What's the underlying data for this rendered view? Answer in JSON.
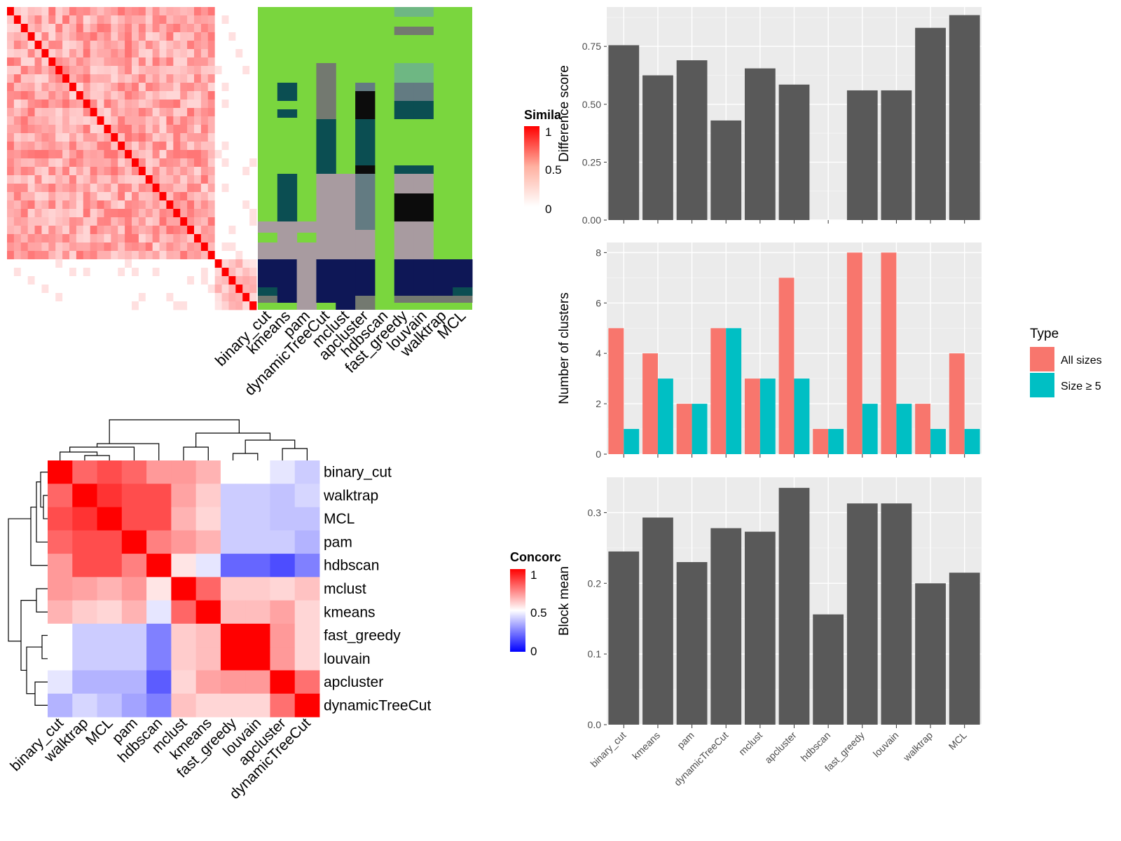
{
  "similarity_legend": {
    "title": "Simila",
    "ticks": [
      "1",
      "0.5",
      "0"
    ]
  },
  "concordance_legend": {
    "title": "Concorc",
    "ticks": [
      "1",
      "0.5",
      "0"
    ]
  },
  "type_legend": {
    "title": "Type",
    "items": [
      {
        "label": "All sizes",
        "color": "#F8766D"
      },
      {
        "label": "Size ≥ 5",
        "color": "#00BFC4"
      }
    ]
  },
  "colors": {
    "bar_gray": "#595959",
    "panel_bg": "#EBEBEB",
    "grid": "#FFFFFF",
    "sim_high": "#FF0000",
    "class_green": "#7AD63E",
    "class_navy": "#0E1756",
    "class_teal": "#0B4E52",
    "class_mauve": "#A89BA0",
    "class_black": "#0C0C0C",
    "class_slate": "#637B82",
    "class_gray": "#737970",
    "class_mint": "#6EB783",
    "conc_high": "#FF0000",
    "conc_mid": "#FFFFFF",
    "conc_low": "#0000FF"
  },
  "chart_data": [
    {
      "type": "heatmap",
      "title": "",
      "legend_title": "Similarity",
      "rows": 36,
      "cols": 36,
      "scale": [
        0,
        1
      ],
      "clusters": [
        [
          0,
          30
        ],
        [
          30,
          36
        ]
      ]
    },
    {
      "type": "heatmap",
      "title": "",
      "methods": [
        "binary_cut",
        "kmeans",
        "pam",
        "dynamicTreeCut",
        "mclust",
        "apcluster",
        "hdbscan",
        "fast_greedy",
        "louvain",
        "walktrap",
        "MCL"
      ]
    },
    {
      "type": "heatmap",
      "title": "",
      "legend_title": "Concordance",
      "row_labels": [
        "binary_cut",
        "walktrap",
        "MCL",
        "pam",
        "hdbscan",
        "mclust",
        "kmeans",
        "fast_greedy",
        "louvain",
        "apcluster",
        "dynamicTreeCut"
      ],
      "col_labels": [
        "binary_cut",
        "walktrap",
        "MCL",
        "pam",
        "hdbscan",
        "mclust",
        "kmeans",
        "fast_greedy",
        "louvain",
        "apcluster",
        "dynamicTreeCut"
      ],
      "values": [
        [
          1.0,
          0.8,
          0.85,
          0.8,
          0.7,
          0.7,
          0.65,
          0.5,
          0.5,
          0.45,
          0.4
        ],
        [
          0.8,
          1.0,
          0.9,
          0.85,
          0.85,
          0.68,
          0.6,
          0.4,
          0.4,
          0.38,
          0.42
        ],
        [
          0.85,
          0.9,
          1.0,
          0.85,
          0.85,
          0.65,
          0.58,
          0.4,
          0.4,
          0.38,
          0.38
        ],
        [
          0.8,
          0.85,
          0.85,
          1.0,
          0.75,
          0.7,
          0.65,
          0.4,
          0.4,
          0.4,
          0.35
        ],
        [
          0.7,
          0.85,
          0.85,
          0.75,
          1.0,
          0.55,
          0.45,
          0.2,
          0.2,
          0.15,
          0.25
        ],
        [
          0.7,
          0.68,
          0.65,
          0.7,
          0.55,
          1.0,
          0.8,
          0.6,
          0.6,
          0.58,
          0.62
        ],
        [
          0.65,
          0.6,
          0.58,
          0.65,
          0.45,
          0.8,
          1.0,
          0.63,
          0.63,
          0.68,
          0.58
        ],
        [
          0.5,
          0.4,
          0.4,
          0.4,
          0.25,
          0.6,
          0.63,
          1.0,
          1.0,
          0.7,
          0.58
        ],
        [
          0.5,
          0.4,
          0.4,
          0.4,
          0.25,
          0.6,
          0.63,
          1.0,
          1.0,
          0.7,
          0.58
        ],
        [
          0.45,
          0.35,
          0.35,
          0.35,
          0.18,
          0.58,
          0.68,
          0.7,
          0.7,
          1.0,
          0.78
        ],
        [
          0.35,
          0.42,
          0.38,
          0.32,
          0.25,
          0.62,
          0.58,
          0.58,
          0.58,
          0.78,
          1.0
        ]
      ]
    },
    {
      "type": "bar",
      "title": "",
      "xlabel": "",
      "ylabel": "Difference score",
      "categories": [
        "binary_cut",
        "kmeans",
        "pam",
        "dynamicTreeCut",
        "mclust",
        "apcluster",
        "hdbscan",
        "fast_greedy",
        "louvain",
        "walktrap",
        "MCL"
      ],
      "values": [
        0.755,
        0.625,
        0.69,
        0.43,
        0.655,
        0.585,
        null,
        0.56,
        0.56,
        0.83,
        0.885
      ],
      "ylim": [
        0,
        0.92
      ],
      "yticks": [
        "0.00",
        "0.25",
        "0.50",
        "0.75"
      ],
      "ytick_values": [
        0,
        0.25,
        0.5,
        0.75
      ],
      "grid": true
    },
    {
      "type": "bar",
      "title": "",
      "xlabel": "",
      "ylabel": "Number of clusters",
      "categories": [
        "binary_cut",
        "kmeans",
        "pam",
        "dynamicTreeCut",
        "mclust",
        "apcluster",
        "hdbscan",
        "fast_greedy",
        "louvain",
        "walktrap",
        "MCL"
      ],
      "series": [
        {
          "name": "All sizes",
          "values": [
            5,
            4,
            2,
            5,
            3,
            7,
            1,
            8,
            8,
            2,
            4
          ]
        },
        {
          "name": "Size ≥ 5",
          "values": [
            1,
            3,
            2,
            5,
            3,
            3,
            1,
            2,
            2,
            1,
            1
          ]
        }
      ],
      "ylim": [
        0,
        8.4
      ],
      "yticks": [
        "0",
        "2",
        "4",
        "6",
        "8"
      ],
      "ytick_values": [
        0,
        2,
        4,
        6,
        8
      ],
      "legend_position": "right",
      "grid": true
    },
    {
      "type": "bar",
      "title": "",
      "xlabel": "",
      "ylabel": "Block mean",
      "categories": [
        "binary_cut",
        "kmeans",
        "pam",
        "dynamicTreeCut",
        "mclust",
        "apcluster",
        "hdbscan",
        "fast_greedy",
        "louvain",
        "walktrap",
        "MCL"
      ],
      "values": [
        0.245,
        0.293,
        0.23,
        0.278,
        0.273,
        0.335,
        0.156,
        0.313,
        0.313,
        0.2,
        0.215
      ],
      "ylim": [
        0,
        0.35
      ],
      "yticks": [
        "0.0",
        "0.1",
        "0.2",
        "0.3"
      ],
      "ytick_values": [
        0,
        0.1,
        0.2,
        0.3
      ],
      "grid": true
    }
  ]
}
